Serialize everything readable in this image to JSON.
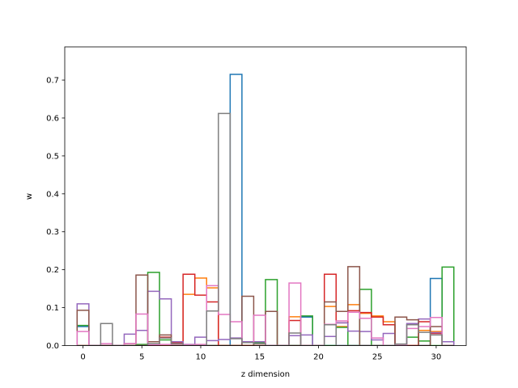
{
  "chart_data": {
    "type": "line",
    "subtype": "step histogram",
    "title": "",
    "xlabel": "z dimension",
    "ylabel": "w",
    "xlim": [
      -1.55,
      32.55
    ],
    "ylim": [
      0,
      0.7875
    ],
    "xticks": [
      0,
      5,
      10,
      15,
      20,
      25,
      30
    ],
    "yticks": [
      0.0,
      0.1,
      0.2,
      0.3,
      0.4,
      0.5,
      0.6,
      0.7
    ],
    "ytick_labels": [
      "0.0",
      "0.1",
      "0.2",
      "0.3",
      "0.4",
      "0.5",
      "0.6",
      "0.7"
    ],
    "grid": false,
    "legend": false,
    "bins_start": -0.5,
    "bin_width": 1,
    "series": [
      {
        "color": "#1f77b4",
        "values": [
          0.05,
          0,
          0,
          0,
          0,
          0,
          0,
          0,
          0,
          0,
          0,
          0,
          0,
          0.715,
          0,
          0,
          0,
          0,
          0,
          0.075,
          0,
          0,
          0,
          0,
          0,
          0,
          0,
          0,
          0,
          0,
          0.177,
          0
        ]
      },
      {
        "color": "#ff7f0e",
        "values": [
          0,
          0,
          0,
          0,
          0,
          0,
          0,
          0,
          0,
          0.135,
          0.178,
          0.152,
          0,
          0,
          0,
          0,
          0,
          0,
          0.076,
          0,
          0,
          0.103,
          0.05,
          0.108,
          0.085,
          0.078,
          0.063,
          0,
          0,
          0.04,
          0.037,
          0
        ]
      },
      {
        "color": "#2ca02c",
        "values": [
          0.053,
          0,
          0,
          0,
          0,
          0.003,
          0.193,
          0.015,
          0.005,
          0.002,
          0,
          0,
          0,
          0,
          0,
          0.008,
          0.174,
          0,
          0,
          0.078,
          0,
          0,
          0.048,
          0,
          0.148,
          0,
          0,
          0,
          0.022,
          0.012,
          0,
          0.207
        ]
      },
      {
        "color": "#d62728",
        "values": [
          0,
          0,
          0,
          0,
          0,
          0,
          0,
          0.022,
          0.007,
          0.188,
          0.133,
          0.115,
          0,
          0,
          0,
          0,
          0,
          0,
          0.066,
          0,
          0,
          0.188,
          0.06,
          0.092,
          0.087,
          0.075,
          0.055,
          0,
          0,
          0.063,
          0.032,
          0
        ]
      },
      {
        "color": "#9467bd",
        "values": [
          0.11,
          0,
          0,
          0,
          0.03,
          0.04,
          0.143,
          0.123,
          0.01,
          0.003,
          0.022,
          0.013,
          0.016,
          0.02,
          0.01,
          0.01,
          0,
          0,
          0.026,
          0.028,
          0,
          0.024,
          0.06,
          0.038,
          0.037,
          0.015,
          0.032,
          0,
          0.058,
          0.07,
          0.034,
          0.01
        ]
      },
      {
        "color": "#8c564b",
        "values": [
          0.093,
          0,
          0,
          0,
          0.005,
          0.186,
          0.01,
          0.028,
          0,
          0,
          0,
          0,
          0,
          0,
          0.13,
          0,
          0.09,
          0,
          0,
          0,
          0,
          0.115,
          0.09,
          0.208,
          0,
          0,
          0,
          0.075,
          0.068,
          0,
          0.05,
          0
        ]
      },
      {
        "color": "#e377c2",
        "values": [
          0.037,
          0,
          0.005,
          0,
          0.005,
          0.083,
          0.002,
          0.003,
          0.004,
          0.002,
          0.003,
          0.158,
          0.082,
          0.063,
          0.008,
          0.08,
          0,
          0,
          0.165,
          0,
          0,
          0.056,
          0.065,
          0.088,
          0.072,
          0.02,
          0,
          0,
          0.045,
          0.05,
          0.074,
          0
        ]
      },
      {
        "color": "#7f7f7f",
        "values": [
          0,
          0,
          0.058,
          0,
          0,
          0,
          0.005,
          0.02,
          0.005,
          0,
          0,
          0.091,
          0.612,
          0.018,
          0.008,
          0.005,
          0,
          0,
          0.033,
          0,
          0,
          0.055,
          0,
          0,
          0,
          0,
          0,
          0.004,
          0.055,
          0.035,
          0.028,
          0
        ]
      }
    ]
  }
}
